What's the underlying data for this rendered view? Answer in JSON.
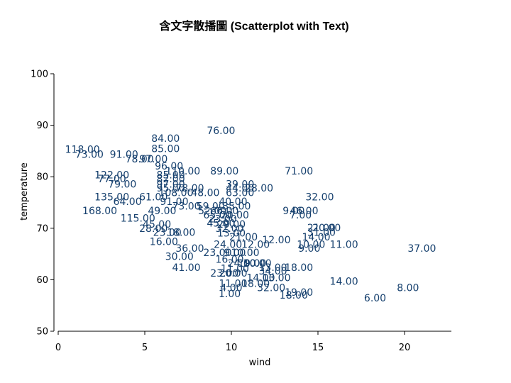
{
  "chart_data": {
    "type": "scatter",
    "title": "含文字散播圖 (Scatterplot with Text)",
    "xlabel": "wind",
    "ylabel": "temperature",
    "xlim": [
      0,
      22
    ],
    "ylim": [
      50,
      100
    ],
    "xticks": [
      0,
      5,
      10,
      15,
      20
    ],
    "yticks": [
      50,
      60,
      70,
      80,
      90,
      100
    ],
    "grid": false,
    "label_color": "#16406e",
    "points": [
      {
        "x": 9.4,
        "y": 89,
        "label": "76.00"
      },
      {
        "x": 6.2,
        "y": 87.5,
        "label": "84.00"
      },
      {
        "x": 6.2,
        "y": 85.5,
        "label": "85.00"
      },
      {
        "x": 1.4,
        "y": 85.3,
        "label": "118.00"
      },
      {
        "x": 1.8,
        "y": 84.4,
        "label": "73.00"
      },
      {
        "x": 3.8,
        "y": 84.4,
        "label": "91.00"
      },
      {
        "x": 4.7,
        "y": 83.5,
        "label": "78.00"
      },
      {
        "x": 5.5,
        "y": 83.5,
        "label": "97.00"
      },
      {
        "x": 6.4,
        "y": 82.1,
        "label": "96.00"
      },
      {
        "x": 7.2,
        "y": 81.1,
        "label": "110.00"
      },
      {
        "x": 9.6,
        "y": 81.1,
        "label": "89.00"
      },
      {
        "x": 13.9,
        "y": 81.1,
        "label": "71.00"
      },
      {
        "x": 3.1,
        "y": 80.4,
        "label": "122.00"
      },
      {
        "x": 6.5,
        "y": 80.4,
        "label": "85.00"
      },
      {
        "x": 3.1,
        "y": 79.6,
        "label": "77.00"
      },
      {
        "x": 6.5,
        "y": 79.6,
        "label": "82.00"
      },
      {
        "x": 3.7,
        "y": 78.6,
        "label": "79.00"
      },
      {
        "x": 6.5,
        "y": 78.6,
        "label": "97.00"
      },
      {
        "x": 10.5,
        "y": 78.6,
        "label": "39.00"
      },
      {
        "x": 6.5,
        "y": 77.8,
        "label": "95.00"
      },
      {
        "x": 7.6,
        "y": 77.8,
        "label": "78.00"
      },
      {
        "x": 10.5,
        "y": 77.8,
        "label": "44.00"
      },
      {
        "x": 11.6,
        "y": 77.8,
        "label": "28.00"
      },
      {
        "x": 6.8,
        "y": 76.9,
        "label": "108.00"
      },
      {
        "x": 8.5,
        "y": 76.9,
        "label": "48.00"
      },
      {
        "x": 10.5,
        "y": 76.9,
        "label": "63.00"
      },
      {
        "x": 3.1,
        "y": 76.1,
        "label": "135.00"
      },
      {
        "x": 5.5,
        "y": 76.1,
        "label": "61.00"
      },
      {
        "x": 15.1,
        "y": 76.1,
        "label": "32.00"
      },
      {
        "x": 4.0,
        "y": 75.2,
        "label": "64.00"
      },
      {
        "x": 6.7,
        "y": 75.2,
        "label": "91.00"
      },
      {
        "x": 10.1,
        "y": 75.2,
        "label": "40.00"
      },
      {
        "x": 7.4,
        "y": 74.3,
        "label": "73.00"
      },
      {
        "x": 8.8,
        "y": 74.3,
        "label": "59.00"
      },
      {
        "x": 10.3,
        "y": 74.3,
        "label": "35.00"
      },
      {
        "x": 2.4,
        "y": 73.4,
        "label": "168.00"
      },
      {
        "x": 6.0,
        "y": 73.4,
        "label": "49.00"
      },
      {
        "x": 8.9,
        "y": 73.4,
        "label": "52.00"
      },
      {
        "x": 9.6,
        "y": 73.4,
        "label": "66.00"
      },
      {
        "x": 13.6,
        "y": 73.4,
        "label": "9.00"
      },
      {
        "x": 14.2,
        "y": 73.4,
        "label": "46.00"
      },
      {
        "x": 9.2,
        "y": 72.6,
        "label": "65.00"
      },
      {
        "x": 10.2,
        "y": 72.6,
        "label": "20.00"
      },
      {
        "x": 14.0,
        "y": 72.6,
        "label": "7.00"
      },
      {
        "x": 4.6,
        "y": 72.0,
        "label": "115.00"
      },
      {
        "x": 9.5,
        "y": 71.8,
        "label": "23.00"
      },
      {
        "x": 9.4,
        "y": 71.0,
        "label": "45.00"
      },
      {
        "x": 5.7,
        "y": 70.8,
        "label": "45.00"
      },
      {
        "x": 10.0,
        "y": 70.8,
        "label": "29.00"
      },
      {
        "x": 5.5,
        "y": 70.0,
        "label": "28.00"
      },
      {
        "x": 9.9,
        "y": 70.0,
        "label": "32.00"
      },
      {
        "x": 15.2,
        "y": 70.1,
        "label": "21.00"
      },
      {
        "x": 15.5,
        "y": 70.1,
        "label": "20.00"
      },
      {
        "x": 6.3,
        "y": 69.2,
        "label": "23.00"
      },
      {
        "x": 7.1,
        "y": 69.2,
        "label": "18.00"
      },
      {
        "x": 10.0,
        "y": 69.1,
        "label": "13.00"
      },
      {
        "x": 15.2,
        "y": 69.2,
        "label": "31.00"
      },
      {
        "x": 10.7,
        "y": 68.3,
        "label": "21.00"
      },
      {
        "x": 14.9,
        "y": 68.3,
        "label": "14.00"
      },
      {
        "x": 12.6,
        "y": 67.8,
        "label": "12.00"
      },
      {
        "x": 6.1,
        "y": 67.4,
        "label": "16.00"
      },
      {
        "x": 9.8,
        "y": 66.9,
        "label": "24.00"
      },
      {
        "x": 11.4,
        "y": 66.9,
        "label": "12.00"
      },
      {
        "x": 14.6,
        "y": 66.9,
        "label": "10.00"
      },
      {
        "x": 16.5,
        "y": 66.9,
        "label": "11.00"
      },
      {
        "x": 7.6,
        "y": 66.1,
        "label": "36.00"
      },
      {
        "x": 14.5,
        "y": 66.1,
        "label": "9.00"
      },
      {
        "x": 21.0,
        "y": 66.1,
        "label": "37.00"
      },
      {
        "x": 9.2,
        "y": 65.3,
        "label": "23.00"
      },
      {
        "x": 10.2,
        "y": 65.3,
        "label": "9.00"
      },
      {
        "x": 10.8,
        "y": 65.3,
        "label": "10.00"
      },
      {
        "x": 7.0,
        "y": 64.5,
        "label": "30.00"
      },
      {
        "x": 9.9,
        "y": 64.0,
        "label": "16.00"
      },
      {
        "x": 10.6,
        "y": 63.2,
        "label": "24.00"
      },
      {
        "x": 11.2,
        "y": 63.2,
        "label": "19.00"
      },
      {
        "x": 11.5,
        "y": 63.2,
        "label": "10.00"
      },
      {
        "x": 7.4,
        "y": 62.4,
        "label": "41.00"
      },
      {
        "x": 10.2,
        "y": 62.2,
        "label": "11.00"
      },
      {
        "x": 12.4,
        "y": 62.4,
        "label": "13.00"
      },
      {
        "x": 13.9,
        "y": 62.4,
        "label": "18.00"
      },
      {
        "x": 12.4,
        "y": 61.7,
        "label": "34.00"
      },
      {
        "x": 9.6,
        "y": 61.3,
        "label": "23.00"
      },
      {
        "x": 10.1,
        "y": 61.3,
        "label": "20.00"
      },
      {
        "x": 11.7,
        "y": 60.4,
        "label": "14.00"
      },
      {
        "x": 12.6,
        "y": 60.4,
        "label": "13.00"
      },
      {
        "x": 16.5,
        "y": 59.7,
        "label": "14.00"
      },
      {
        "x": 10.1,
        "y": 59.3,
        "label": "11.00"
      },
      {
        "x": 11.4,
        "y": 59.3,
        "label": "18.00"
      },
      {
        "x": 10.0,
        "y": 58.5,
        "label": "4.00"
      },
      {
        "x": 12.3,
        "y": 58.5,
        "label": "32.00"
      },
      {
        "x": 20.2,
        "y": 58.5,
        "label": "8.00"
      },
      {
        "x": 13.9,
        "y": 57.6,
        "label": "19.00"
      },
      {
        "x": 9.9,
        "y": 57.3,
        "label": "1.00"
      },
      {
        "x": 13.6,
        "y": 57.0,
        "label": "18.00"
      },
      {
        "x": 18.3,
        "y": 56.5,
        "label": "6.00"
      }
    ]
  }
}
